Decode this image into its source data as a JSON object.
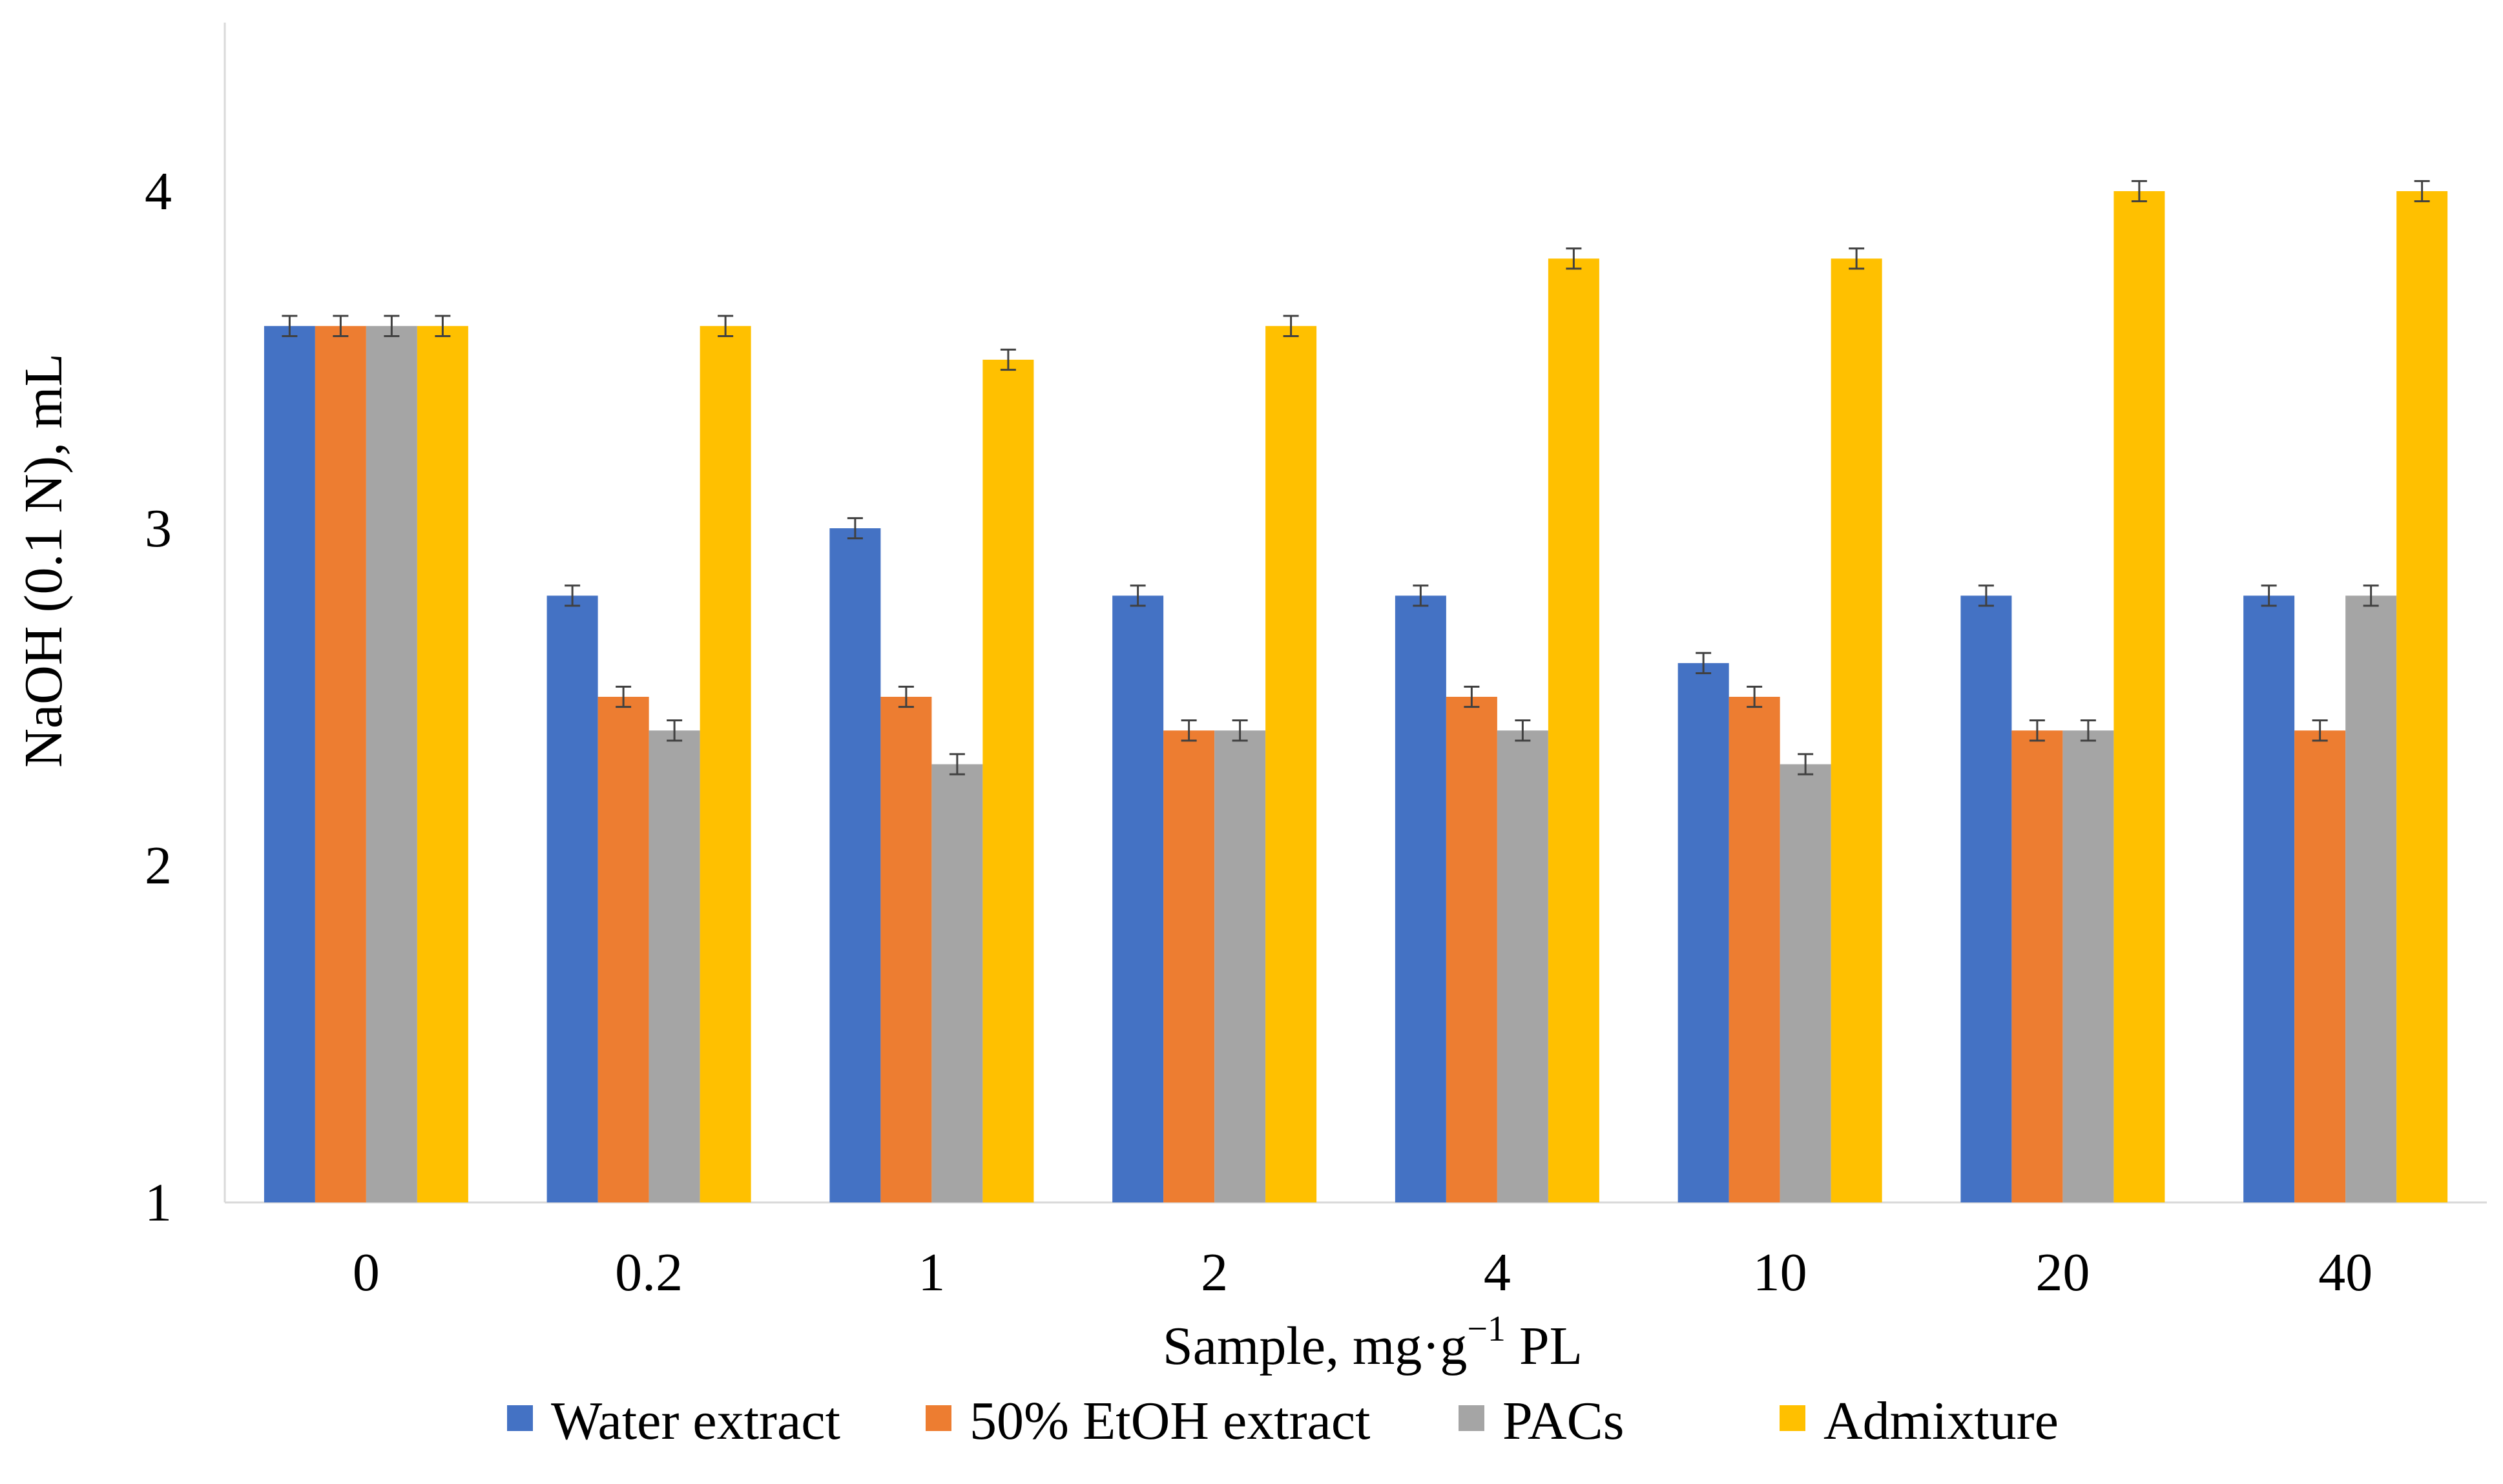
{
  "chart_data": {
    "type": "bar",
    "title": "",
    "xlabel": "Sample, mg·g",
    "xlabel_sup": "−1",
    "xlabel_tail": " PL",
    "ylabel": "NaOH (0.1 N), mL",
    "ylim": [
      1,
      4.5
    ],
    "yticks": [
      "1",
      "2",
      "3",
      "4"
    ],
    "categories": [
      "0",
      "0.2",
      "1",
      "2",
      "4",
      "10",
      "20",
      "40"
    ],
    "series": [
      {
        "name": "Water extract",
        "color": "#4472c4",
        "values": [
          3.6,
          2.8,
          3.0,
          2.8,
          2.8,
          2.6,
          2.8,
          2.8
        ]
      },
      {
        "name": "50% EtOH extract",
        "color": "#ed7d31",
        "values": [
          3.6,
          2.5,
          2.5,
          2.4,
          2.5,
          2.5,
          2.4,
          2.4
        ]
      },
      {
        "name": "PACs",
        "color": "#a5a5a5",
        "values": [
          3.6,
          2.4,
          2.3,
          2.4,
          2.4,
          2.3,
          2.4,
          2.8
        ]
      },
      {
        "name": "Admixture",
        "color": "#ffc000",
        "values": [
          3.6,
          3.6,
          3.5,
          3.6,
          3.8,
          3.8,
          4.0,
          4.0
        ]
      }
    ],
    "error": 0.03,
    "legend_position": "bottom",
    "grid": false
  }
}
